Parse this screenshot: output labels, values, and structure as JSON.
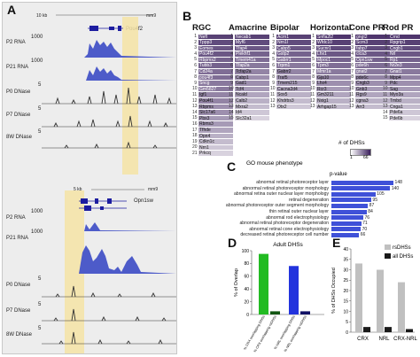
{
  "panel_labels": {
    "a": "A",
    "b": "B",
    "c": "C",
    "d": "D",
    "e": "E"
  },
  "panelA": {
    "top": {
      "gene": "Pou4f2",
      "scale_left": "10 kb",
      "scale_right": "mm9",
      "tracks": [
        {
          "label": "P2 RNA",
          "max": "1000"
        },
        {
          "label": "P21 RNA",
          "max": "1000"
        },
        {
          "label": "P0 DNase",
          "max": "5"
        },
        {
          "label": "P7 DNase",
          "max": "5"
        },
        {
          "label": "8W DNase",
          "max": "5"
        }
      ]
    },
    "bottom": {
      "gene": "Opn1sw",
      "scale_left": "5 kb",
      "scale_right": "mm9",
      "tracks": [
        {
          "label": "P2 RNA",
          "max": "1000"
        },
        {
          "label": "P21 RNA",
          "max": "1000"
        },
        {
          "label": "P0 DNase",
          "max": "5"
        },
        {
          "label": "P7 DNase",
          "max": "5"
        },
        {
          "label": "8W DNase",
          "max": "5"
        }
      ]
    }
  },
  "panelB": {
    "columns": [
      {
        "header": "RGC",
        "items": [
          "Nefl",
          "Tppp3",
          "Eomes",
          "Pou4f2",
          "Rbpms2",
          "Tubb3",
          "Cd24a",
          "pou4f3",
          "Sncg",
          "Gm5827",
          "Igf1",
          "Pou4f1",
          "Rbpms",
          "Slc17a6",
          "Pbx3",
          "Rbms3",
          "Tfhde",
          "Opn4",
          "Cdkn1c",
          "Nrn1",
          "Prkcq"
        ],
        "shades": [
          0.85,
          0.8,
          0.75,
          0.75,
          0.7,
          0.7,
          0.65,
          0.65,
          0.6,
          0.6,
          0.55,
          0.55,
          0.5,
          0.5,
          0.45,
          0.45,
          0.4,
          0.35,
          0.3,
          0.25,
          0.2
        ]
      },
      {
        "header": "Amacrine",
        "items": [
          "Necab1",
          "Myf6",
          "Tfap4",
          "Plekhf1",
          "Tmem41a",
          "Tfap2a",
          "Tcfap2a",
          "Cabp1",
          "Gad1",
          "Tcf4",
          "Ncald",
          "Calb2",
          "Mxra2",
          "Id4",
          "Slc32a1"
        ],
        "shades": [
          0.85,
          0.8,
          0.75,
          0.7,
          0.65,
          0.6,
          0.55,
          0.5,
          0.5,
          0.45,
          0.4,
          0.35,
          0.3,
          0.25,
          0.2
        ]
      },
      {
        "header": "Bipolar",
        "items": [
          "Acrn1",
          "Nrn1l",
          "Cabp5",
          "Gstp2",
          "Gabrr1",
          "Trpm1",
          "Gabrr2",
          "Traf5",
          "Tmem215",
          "Cacna2d4",
          "Sox5",
          "Khdrbs3",
          "Otx2"
        ],
        "shades": [
          0.85,
          0.8,
          0.75,
          0.7,
          0.65,
          0.6,
          0.55,
          0.5,
          0.45,
          0.4,
          0.35,
          0.3,
          0.25
        ]
      },
      {
        "header": "Horizontal",
        "items": [
          "Snfla2l2",
          "Wfdc10",
          "Sucnr1",
          "Lhx1",
          "Mpoc1",
          "Tpm3",
          "Mmr1a",
          "Gja10",
          "Lhx4",
          "Rcr3",
          "Gm3211",
          "Nxig1",
          "Arhgap15"
        ],
        "shades": [
          0.9,
          0.85,
          0.8,
          0.75,
          0.7,
          0.65,
          0.6,
          0.55,
          0.5,
          0.45,
          0.4,
          0.35,
          0.3
        ]
      },
      {
        "header": "Cone PR",
        "items": [
          "gngt2",
          "Scrn3",
          "fabp7",
          "clca3",
          "Opn1sw",
          "pde6h",
          "gnat2",
          "pde6c",
          "Cngb3",
          "Gnb3",
          "Rgs9",
          "cgna3",
          "Arr3"
        ],
        "shades": [
          0.9,
          0.85,
          0.8,
          0.75,
          0.7,
          0.65,
          0.6,
          0.55,
          0.5,
          0.45,
          0.4,
          0.35,
          0.3
        ]
      },
      {
        "header": "Rod PR",
        "items": [
          "Crnd",
          "Rpgrip1",
          "Cngb1",
          "Nrl",
          "Rp1",
          "Nr2e3",
          "Gnat1",
          "Mpp4",
          "Pdc",
          "Sag",
          "Myo3a",
          "Tmbd",
          "Cnga1",
          "Pde6a",
          "Pde6b"
        ],
        "shades": [
          0.9,
          0.85,
          0.8,
          0.75,
          0.7,
          0.65,
          0.6,
          0.55,
          0.5,
          0.45,
          0.4,
          0.35,
          0.3,
          0.25,
          0.2
        ]
      }
    ],
    "legend_title": "# of DHSs",
    "legend_min": "1",
    "legend_max": "66"
  },
  "panelC": {
    "title": "GO mouse phenotype",
    "axis_label": "p-value",
    "terms": [
      "abnormal retinal photoreceptor layer",
      "abnormal retinal photoreceptor morphology",
      "abnormal retina outer nuclear layer morphology",
      "retinal degeneration",
      "abnormal photoreceptor outer segment morphology",
      "thin retinal outer nuclear layer",
      "abnormal rod electrophysiology",
      "abnormal retinal photoreceptor degeneration",
      "abnormal retinal cone electrophysiology",
      "decreased retinal photoreceptor cell number"
    ],
    "bar_labels": [
      "148",
      "140",
      "105",
      "95",
      "87",
      "84",
      "76",
      "71",
      "70",
      "66"
    ],
    "values": [
      148,
      140,
      105,
      95,
      87,
      84,
      76,
      71,
      70,
      66
    ],
    "bar_color": "#3f51d8"
  },
  "chart_data": [
    {
      "type": "bar",
      "title": "Adult DHSs",
      "ylabel": "% of Overlap",
      "ylim": [
        0,
        100
      ],
      "categories": [
        "% CRX overlapping DHSs",
        "% CRX overlapping rsDHSs",
        "% NRL overlapping DHSs",
        "% NRL overlapping rsDHSs"
      ],
      "values": [
        95,
        5,
        76,
        5
      ],
      "colors": [
        "#22bb22",
        "#115511",
        "#2233dd",
        "#111166"
      ]
    },
    {
      "type": "bar",
      "ylabel": "% of DHSs Occupied",
      "ylim": [
        0,
        40
      ],
      "categories": [
        "CRX",
        "NRL",
        "CRX-NRL"
      ],
      "series": [
        {
          "name": "rsDHSs",
          "values": [
            33,
            30,
            24
          ]
        },
        {
          "name": "all DHSs",
          "values": [
            2.5,
            2.5,
            1.5
          ]
        }
      ],
      "colors": [
        "#c0c0c0",
        "#1a1a1a"
      ],
      "legend": "top-right"
    }
  ]
}
